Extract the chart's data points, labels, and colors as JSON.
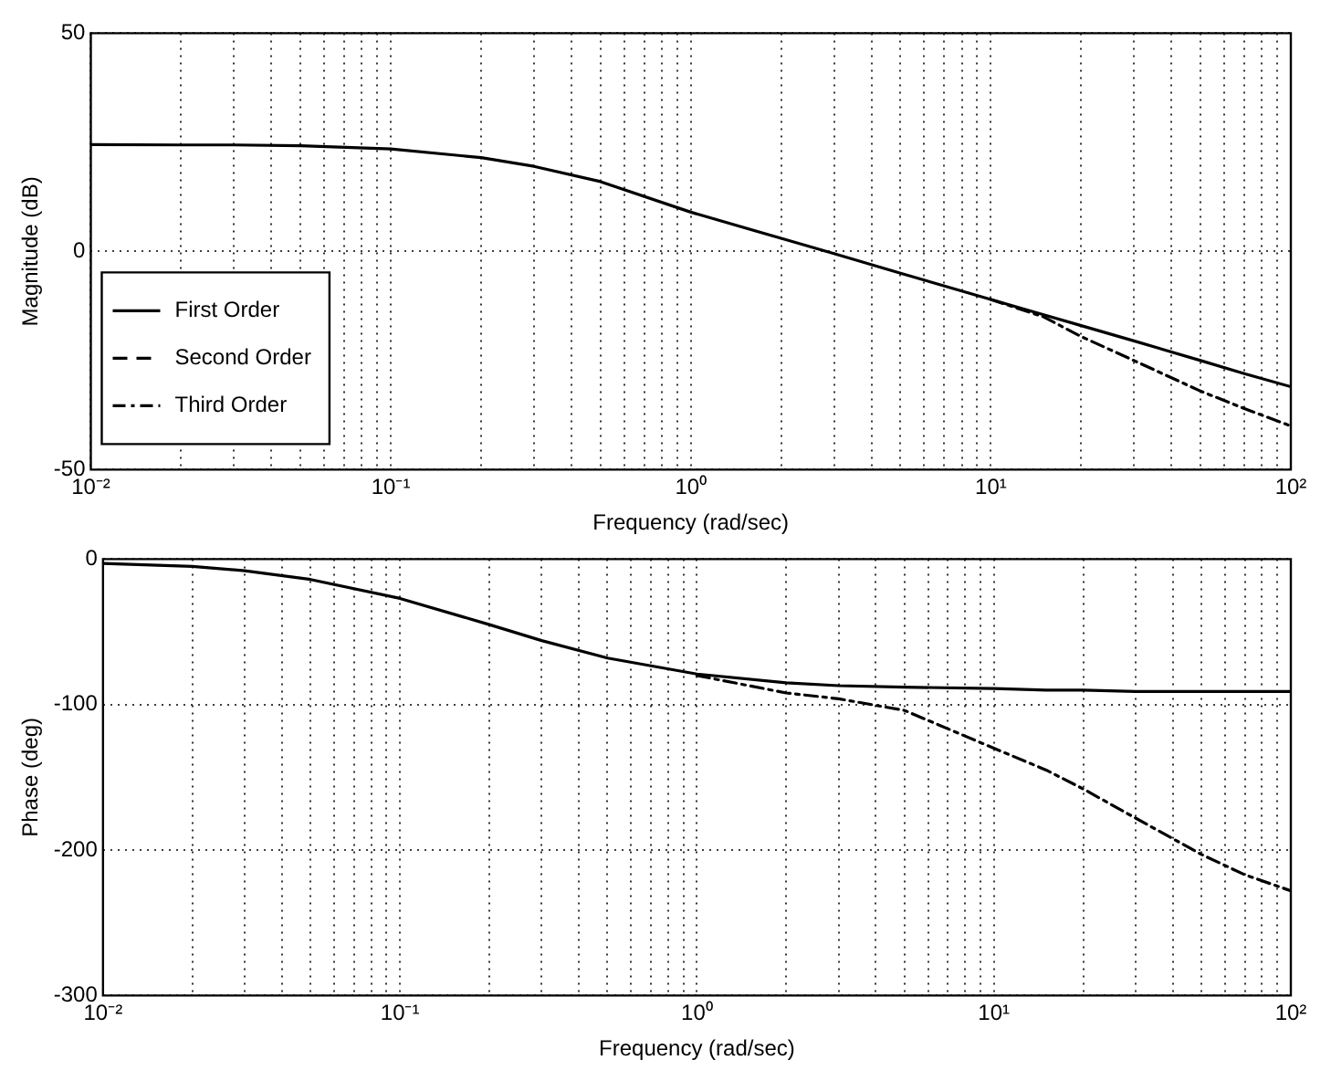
{
  "chart_data": [
    {
      "type": "line",
      "xlabel": "Frequency (rad/sec)",
      "ylabel": "Magnitude (dB)",
      "log": "x",
      "grid": true,
      "legend": "bottom left",
      "marker": "none",
      "x": [
        0.01,
        0.02,
        0.03,
        0.05,
        0.1,
        0.2,
        0.3,
        0.5,
        1,
        2,
        3,
        5,
        10,
        15,
        20,
        30,
        50,
        70,
        100
      ],
      "xlim": [
        0.01,
        100
      ],
      "xticks": [
        {
          "value": 0.01,
          "label": "10⁻²"
        },
        {
          "value": 0.02,
          "label": null
        },
        {
          "value": 0.03,
          "label": null
        },
        {
          "value": 0.04,
          "label": null
        },
        {
          "value": 0.05,
          "label": null
        },
        {
          "value": 0.06,
          "label": null
        },
        {
          "value": 0.07,
          "label": null
        },
        {
          "value": 0.08,
          "label": null
        },
        {
          "value": 0.09,
          "label": null
        },
        {
          "value": 0.1,
          "label": "10⁻¹"
        },
        {
          "value": 0.2,
          "label": null
        },
        {
          "value": 0.3,
          "label": null
        },
        {
          "value": 0.4,
          "label": null
        },
        {
          "value": 0.5,
          "label": null
        },
        {
          "value": 0.6,
          "label": null
        },
        {
          "value": 0.7,
          "label": null
        },
        {
          "value": 0.8,
          "label": null
        },
        {
          "value": 0.9,
          "label": null
        },
        {
          "value": 1,
          "label": "10⁰"
        },
        {
          "value": 2,
          "label": null
        },
        {
          "value": 3,
          "label": null
        },
        {
          "value": 4,
          "label": null
        },
        {
          "value": 5,
          "label": null
        },
        {
          "value": 6,
          "label": null
        },
        {
          "value": 7,
          "label": null
        },
        {
          "value": 8,
          "label": null
        },
        {
          "value": 9,
          "label": null
        },
        {
          "value": 10,
          "label": "10¹"
        },
        {
          "value": 20,
          "label": null
        },
        {
          "value": 30,
          "label": null
        },
        {
          "value": 40,
          "label": null
        },
        {
          "value": 50,
          "label": null
        },
        {
          "value": 60,
          "label": null
        },
        {
          "value": 70,
          "label": null
        },
        {
          "value": 80,
          "label": null
        },
        {
          "value": 90,
          "label": null
        },
        {
          "value": 100,
          "label": "10²"
        }
      ],
      "ylim": [
        -50,
        50
      ],
      "yticks": [
        -50,
        0,
        50
      ],
      "series": [
        {
          "name": "First Order",
          "color": "#000000",
          "line_style": "solid",
          "values": [
            24.5,
            24.4,
            24.4,
            24.2,
            23.5,
            21.5,
            19.5,
            16,
            9,
            3,
            -0.5,
            -5,
            -11,
            -14.5,
            -17,
            -20.5,
            -25,
            -28,
            -31
          ]
        },
        {
          "name": "Second Order",
          "color": "#000000",
          "line_style": "dashed",
          "values": [
            null,
            null,
            null,
            null,
            null,
            null,
            null,
            null,
            null,
            null,
            null,
            null,
            null,
            null,
            null,
            null,
            null,
            null,
            null
          ]
        },
        {
          "name": "Third Order",
          "color": "#000000",
          "line_style": "dotted",
          "values": [
            null,
            null,
            null,
            null,
            null,
            null,
            null,
            null,
            null,
            null,
            null,
            null,
            -11,
            -15,
            -19.5,
            -25,
            -32,
            -36,
            -40
          ]
        }
      ]
    },
    {
      "type": "line",
      "xlabel": "Frequency (rad/sec)",
      "ylabel": "Phase (deg)",
      "log": "x",
      "grid": true,
      "marker": "none",
      "x": [
        0.01,
        0.02,
        0.03,
        0.05,
        0.1,
        0.2,
        0.3,
        0.5,
        1,
        2,
        3,
        5,
        10,
        15,
        20,
        30,
        50,
        70,
        100
      ],
      "xlim": [
        0.01,
        100
      ],
      "xticks": [
        {
          "value": 0.01,
          "label": "10⁻²"
        },
        {
          "value": 0.02,
          "label": null
        },
        {
          "value": 0.03,
          "label": null
        },
        {
          "value": 0.04,
          "label": null
        },
        {
          "value": 0.05,
          "label": null
        },
        {
          "value": 0.06,
          "label": null
        },
        {
          "value": 0.07,
          "label": null
        },
        {
          "value": 0.08,
          "label": null
        },
        {
          "value": 0.09,
          "label": null
        },
        {
          "value": 0.1,
          "label": "10⁻¹"
        },
        {
          "value": 0.2,
          "label": null
        },
        {
          "value": 0.3,
          "label": null
        },
        {
          "value": 0.4,
          "label": null
        },
        {
          "value": 0.5,
          "label": null
        },
        {
          "value": 0.6,
          "label": null
        },
        {
          "value": 0.7,
          "label": null
        },
        {
          "value": 0.8,
          "label": null
        },
        {
          "value": 0.9,
          "label": null
        },
        {
          "value": 1,
          "label": "10⁰"
        },
        {
          "value": 2,
          "label": null
        },
        {
          "value": 3,
          "label": null
        },
        {
          "value": 4,
          "label": null
        },
        {
          "value": 5,
          "label": null
        },
        {
          "value": 6,
          "label": null
        },
        {
          "value": 7,
          "label": null
        },
        {
          "value": 8,
          "label": null
        },
        {
          "value": 9,
          "label": null
        },
        {
          "value": 10,
          "label": "10¹"
        },
        {
          "value": 20,
          "label": null
        },
        {
          "value": 30,
          "label": null
        },
        {
          "value": 40,
          "label": null
        },
        {
          "value": 50,
          "label": null
        },
        {
          "value": 60,
          "label": null
        },
        {
          "value": 70,
          "label": null
        },
        {
          "value": 80,
          "label": null
        },
        {
          "value": 90,
          "label": null
        },
        {
          "value": 100,
          "label": "10²"
        }
      ],
      "ylim": [
        -300,
        0
      ],
      "yticks": [
        -300,
        -200,
        -100,
        0
      ],
      "series": [
        {
          "color": "#000000",
          "line_style": "solid",
          "values": [
            -3,
            -5,
            -8,
            -14,
            -27,
            -45,
            -56,
            -68,
            -79,
            -85,
            -87,
            -88,
            -89,
            -90,
            -90,
            -91,
            -91,
            -91,
            -91
          ]
        },
        {
          "color": "#000000",
          "line_style": "dotted",
          "values": [
            null,
            null,
            null,
            null,
            null,
            null,
            null,
            null,
            -80,
            -92,
            -96,
            -104,
            -130,
            -145,
            -158,
            -178,
            -203,
            -217,
            -228
          ]
        }
      ]
    }
  ]
}
